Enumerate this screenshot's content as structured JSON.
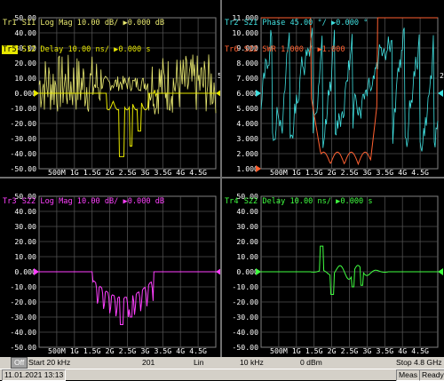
{
  "colors": {
    "s11": "#e8e870",
    "s12": "#e8e800",
    "s21": "#40e0e0",
    "s22swr": "#ff6030",
    "s22lm": "#ff40ff",
    "s22d": "#40ff40",
    "grid": "#808080"
  },
  "panes": [
    {
      "id": "p1",
      "lines": [
        {
          "badge": "Tr1",
          "rest": " S11 Log Mag 10.00 dB/ ▶0.000 dB",
          "color": "#e8e870"
        },
        {
          "badge": "Tr5",
          "rest": " S12 Delay 10.00 ns/ ▶0.000 s",
          "color": "#e8e800",
          "highlight": true
        }
      ],
      "yticks": [
        "50.00",
        "40.00",
        "30.00",
        "20.00",
        "10.00",
        "0.000",
        "-10.00",
        "-20.00",
        "-30.00",
        "-40.00",
        "-50.00"
      ],
      "right_marker": "5"
    },
    {
      "id": "p2",
      "lines": [
        {
          "badge": "Tr2",
          "rest": " S21 Phase 45.00 °/ ▶0.000 °",
          "color": "#40e0e0"
        },
        {
          "badge": "Tr6",
          "rest": " S22 SWR 1.000 / ▶1.000",
          "color": "#ff6030"
        }
      ],
      "yticks": [
        "11.000",
        "10.000",
        "9.000",
        "8.000",
        "7.000",
        "6.000",
        "5.000",
        "4.000",
        "3.000",
        "2.000",
        "1.000"
      ],
      "right_marker": "2"
    },
    {
      "id": "p3",
      "lines": [
        {
          "badge": "Tr3",
          "rest": " S22 Log Mag 10.00 dB/ ▶0.000 dB",
          "color": "#ff40ff"
        }
      ],
      "yticks": [
        "50.00",
        "40.00",
        "30.00",
        "20.00",
        "10.00",
        "0.000",
        "-10.00",
        "-20.00",
        "-30.00",
        "-40.00",
        "-50.00"
      ],
      "right_marker": ""
    },
    {
      "id": "p4",
      "lines": [
        {
          "badge": "Tr4",
          "rest": " S22 Delay 10.00 ns/ ▶0.000 s",
          "color": "#40ff40"
        }
      ],
      "yticks": [
        "50.00",
        "40.00",
        "30.00",
        "20.00",
        "10.00",
        "0.000",
        "-10.00",
        "-20.00",
        "-30.00",
        "-40.00",
        "-50.00"
      ],
      "right_marker": ""
    }
  ],
  "xticks": [
    "500M",
    "1G",
    "1.5G",
    "2G",
    "2.5G",
    "3G",
    "3.5G",
    "4G",
    "4.5G"
  ],
  "status": {
    "off": "Off",
    "start": "Start 20 kHz",
    "points": "201",
    "sweep": "Lin",
    "ifbw": "10 kHz",
    "power": "0 dBm",
    "stop": "Stop 4.8 GHz"
  },
  "bottom": {
    "datetime": "11.01.2021 13:13",
    "meas": "Meas",
    "ready": "Ready"
  }
}
